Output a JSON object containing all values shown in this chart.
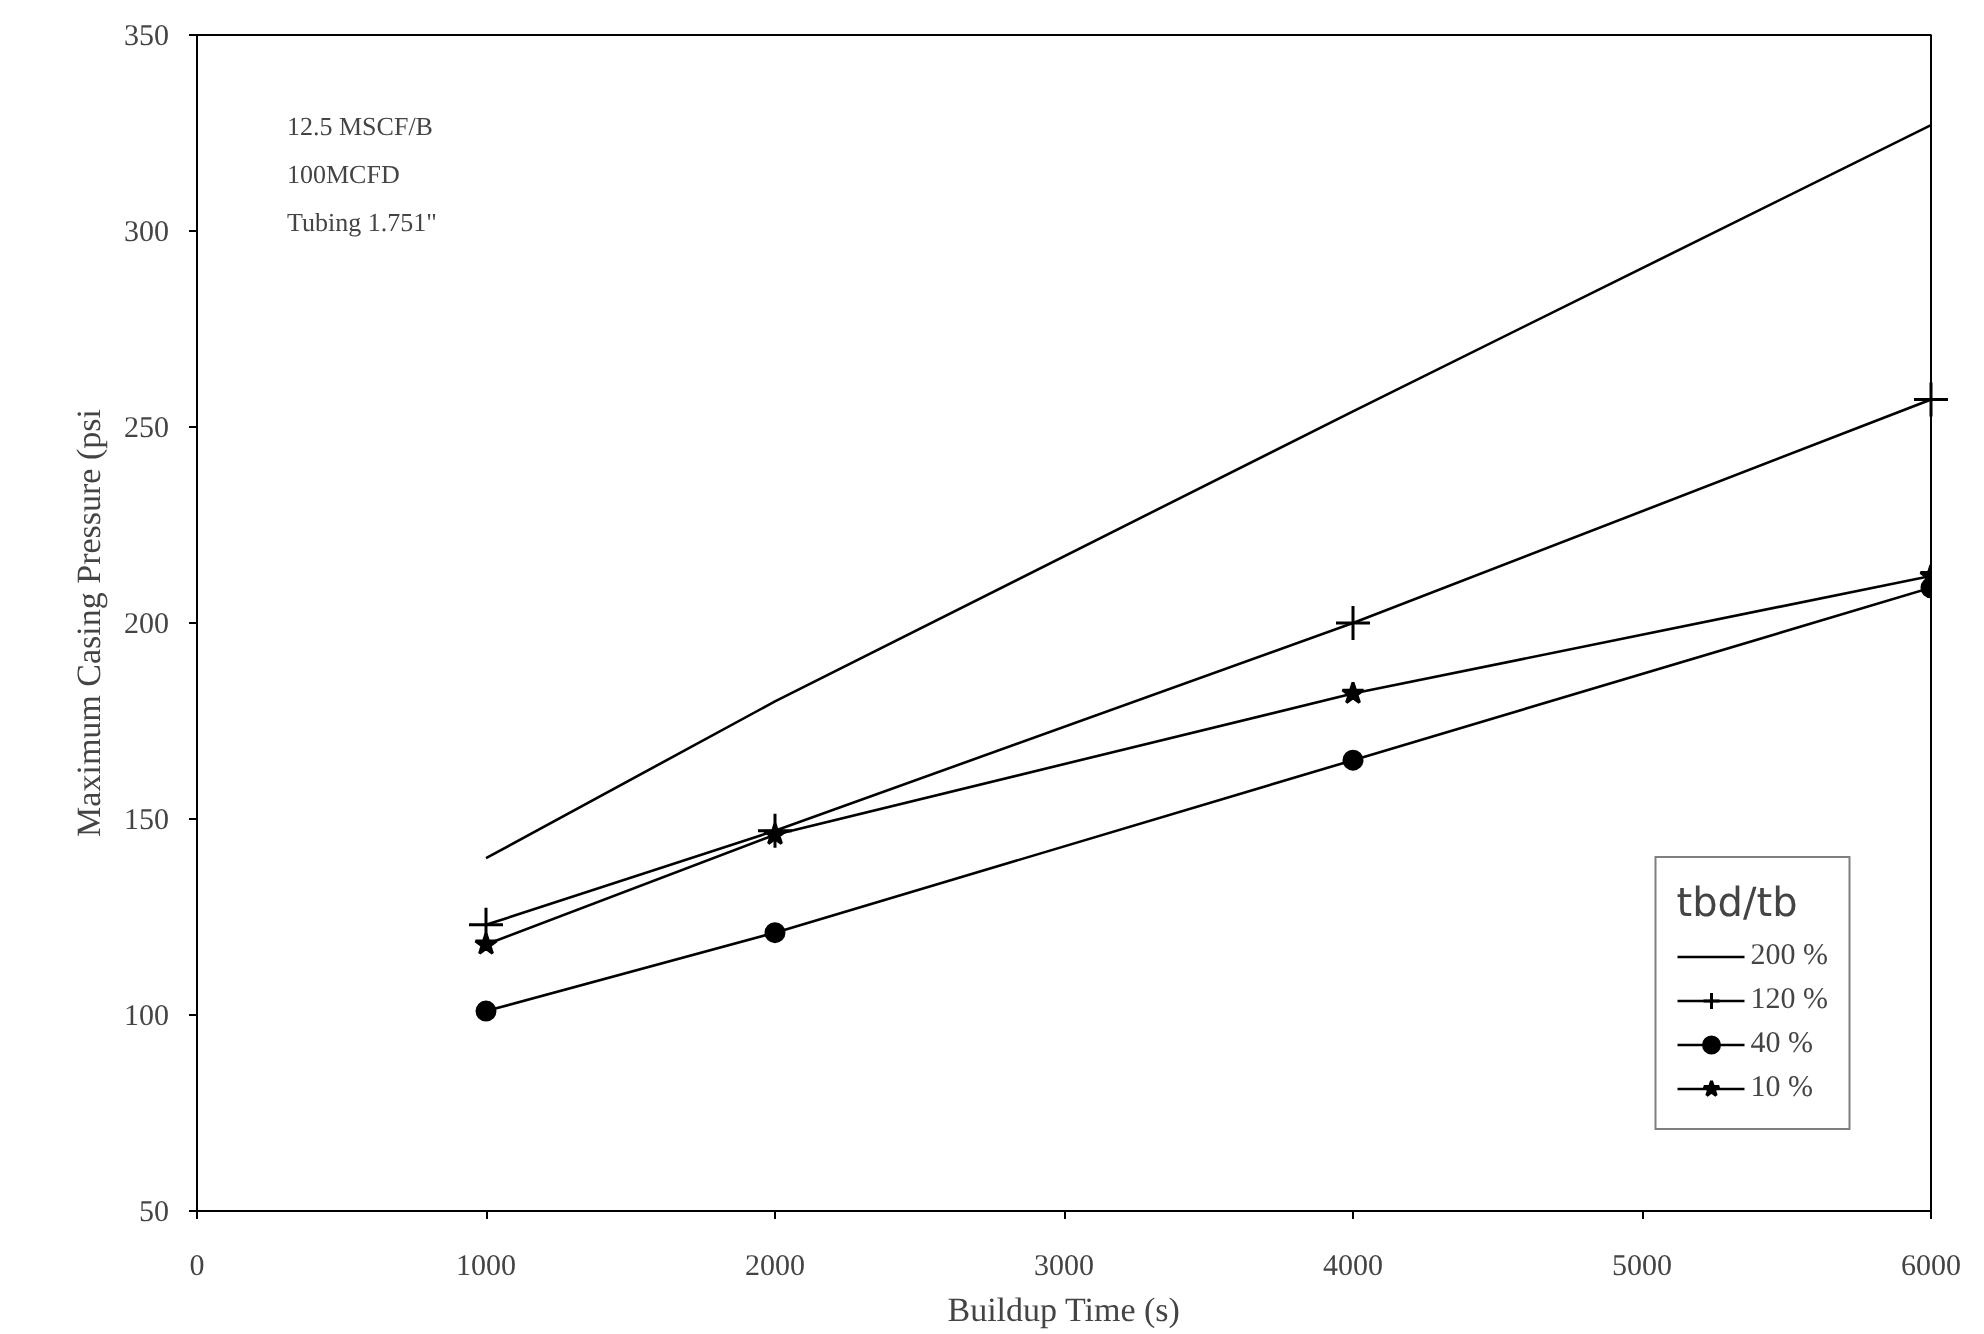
{
  "chart_data": {
    "type": "line",
    "xlabel": "Buildup Time (s)",
    "ylabel": "Maximum Casing Pressure (psi",
    "x": [
      1000,
      2000,
      4000,
      6000
    ],
    "series": [
      {
        "name": "200 %",
        "color": "#000000",
        "marker": "none",
        "values": [
          140,
          180,
          254,
          327
        ]
      },
      {
        "name": "120 %",
        "color": "#000000",
        "marker": "cross",
        "values": [
          123,
          147,
          200,
          257
        ]
      },
      {
        "name": "40 %",
        "color": "#000000",
        "marker": "circle",
        "values": [
          101,
          121,
          165,
          209
        ]
      },
      {
        "name": "10 %",
        "color": "#000000",
        "marker": "star",
        "values": [
          118,
          146,
          182,
          212
        ]
      }
    ],
    "xlim": [
      0,
      6000
    ],
    "xticks": [
      0,
      1000,
      2000,
      3000,
      4000,
      5000,
      6000
    ],
    "ylim": [
      50,
      350
    ],
    "yticks": [
      50,
      100,
      150,
      200,
      250,
      300,
      350
    ],
    "legend_title": "tbd/tb",
    "legend": "bottom right",
    "grid": false,
    "line_style": "solid",
    "annotations": [
      "12.5 MSCF/B",
      "100MCFD",
      "Tubing  1.751\""
    ]
  }
}
